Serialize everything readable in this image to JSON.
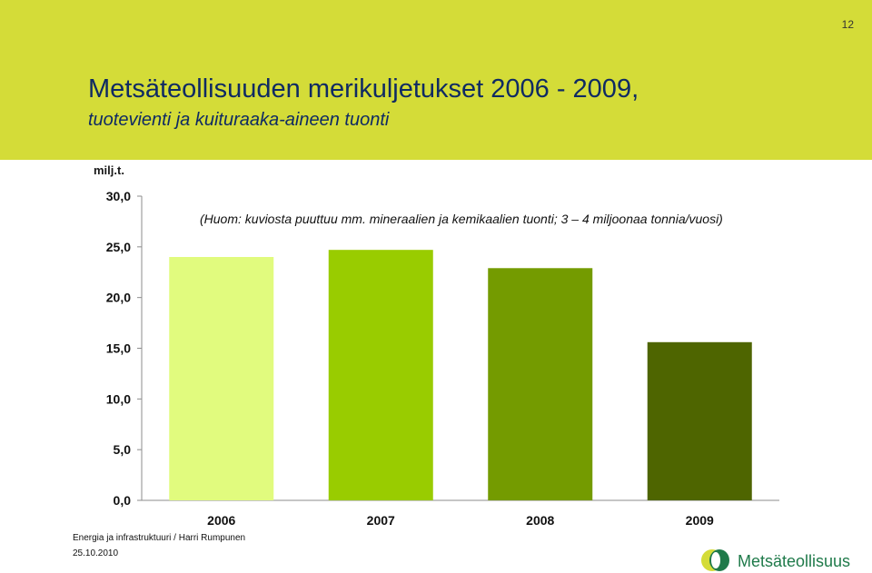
{
  "page": {
    "number": "12"
  },
  "header": {
    "title": "Metsäteollisuuden merikuljetukset 2006 - 2009,",
    "subtitle": "tuotevienti ja kuituraaka-aineen tuonti"
  },
  "chart_data": {
    "type": "bar",
    "categories": [
      "2006",
      "2007",
      "2008",
      "2009"
    ],
    "values": [
      24.0,
      24.7,
      22.9,
      15.6
    ],
    "colors": [
      "#e1fb7e",
      "#99cc00",
      "#749b00",
      "#4e6500"
    ],
    "title": "",
    "xlabel": "",
    "ylabel": "milj.t.",
    "ylim": [
      0,
      30
    ],
    "yticks": [
      {
        "value": 0,
        "label": "0,0"
      },
      {
        "value": 5,
        "label": "5,0"
      },
      {
        "value": 10,
        "label": "10,0"
      },
      {
        "value": 15,
        "label": "15,0"
      },
      {
        "value": 20,
        "label": "20,0"
      },
      {
        "value": 25,
        "label": "25,0"
      },
      {
        "value": 30,
        "label": "30,0"
      }
    ],
    "grid": false,
    "legend": "none",
    "annotation": "(Huom: kuviosta puuttuu mm. mineraalien ja kemikaalien tuonti; 3 – 4 miljoonaa tonnia/vuosi)"
  },
  "footer": {
    "author": "Energia ja infrastruktuuri / Harri Rumpunen",
    "date": "25.10.2010"
  },
  "logo": {
    "text": "Metsäteollisuus",
    "colors": [
      "#d4dc38",
      "#1f7a4a"
    ]
  }
}
